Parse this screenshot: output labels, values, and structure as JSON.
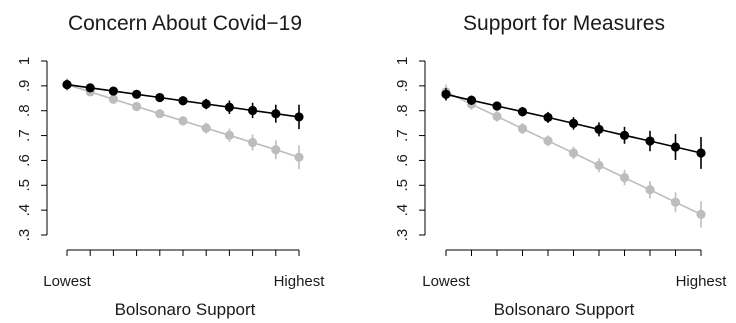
{
  "chart_data": [
    {
      "type": "line",
      "title": "Concern About Covid−19",
      "xlabel": "Bolsonaro Support",
      "ylabel": "",
      "x": [
        1,
        2,
        3,
        4,
        5,
        6,
        7,
        8,
        9,
        10,
        11
      ],
      "x_tick_labels": [
        {
          "x": 1,
          "label": "Lowest"
        },
        {
          "x": 11,
          "label": "Highest"
        }
      ],
      "ylim": [
        0.3,
        1.0
      ],
      "y_ticks": [
        0.3,
        0.4,
        0.5,
        0.6,
        0.7,
        0.8,
        0.9,
        1.0
      ],
      "y_tick_labels": [
        ".3",
        ".4",
        ".5",
        ".6",
        ".7",
        ".8",
        ".9",
        "1"
      ],
      "series": [
        {
          "color": "#000000",
          "values": [
            0.905,
            0.892,
            0.879,
            0.866,
            0.853,
            0.84,
            0.827,
            0.814,
            0.801,
            0.788,
            0.775
          ],
          "ci_low": [
            0.885,
            0.877,
            0.866,
            0.852,
            0.837,
            0.822,
            0.806,
            0.787,
            0.77,
            0.752,
            0.726
          ],
          "ci_high": [
            0.925,
            0.907,
            0.892,
            0.88,
            0.869,
            0.858,
            0.848,
            0.841,
            0.832,
            0.824,
            0.824
          ]
        },
        {
          "color": "#bdbdbd",
          "values": [
            0.905,
            0.876,
            0.846,
            0.817,
            0.788,
            0.759,
            0.73,
            0.701,
            0.672,
            0.643,
            0.613
          ],
          "ci_low": [
            0.88,
            0.858,
            0.829,
            0.8,
            0.771,
            0.74,
            0.708,
            0.674,
            0.64,
            0.605,
            0.565
          ],
          "ci_high": [
            0.93,
            0.894,
            0.863,
            0.834,
            0.805,
            0.778,
            0.752,
            0.728,
            0.704,
            0.681,
            0.661
          ]
        }
      ]
    },
    {
      "type": "line",
      "title": "Support for Measures",
      "xlabel": "Bolsonaro Support",
      "ylabel": "",
      "x": [
        1,
        2,
        3,
        4,
        5,
        6,
        7,
        8,
        9,
        10,
        11
      ],
      "x_tick_labels": [
        {
          "x": 1,
          "label": "Lowest"
        },
        {
          "x": 11,
          "label": "Highest"
        }
      ],
      "ylim": [
        0.3,
        1.0
      ],
      "y_ticks": [
        0.3,
        0.4,
        0.5,
        0.6,
        0.7,
        0.8,
        0.9,
        1.0
      ],
      "y_tick_labels": [
        ".3",
        ".4",
        ".5",
        ".6",
        ".7",
        ".8",
        ".9",
        "1"
      ],
      "series": [
        {
          "color": "#000000",
          "values": [
            0.866,
            0.842,
            0.819,
            0.796,
            0.773,
            0.749,
            0.725,
            0.701,
            0.678,
            0.654,
            0.63
          ],
          "ci_low": [
            0.841,
            0.823,
            0.801,
            0.777,
            0.751,
            0.724,
            0.697,
            0.667,
            0.637,
            0.602,
            0.566
          ],
          "ci_high": [
            0.891,
            0.861,
            0.837,
            0.815,
            0.795,
            0.774,
            0.753,
            0.735,
            0.719,
            0.706,
            0.694
          ]
        },
        {
          "color": "#bdbdbd",
          "values": [
            0.876,
            0.826,
            0.777,
            0.728,
            0.679,
            0.63,
            0.58,
            0.531,
            0.482,
            0.432,
            0.383
          ],
          "ci_low": [
            0.846,
            0.804,
            0.756,
            0.706,
            0.657,
            0.605,
            0.552,
            0.5,
            0.447,
            0.392,
            0.33
          ],
          "ci_high": [
            0.906,
            0.848,
            0.798,
            0.75,
            0.701,
            0.655,
            0.608,
            0.562,
            0.517,
            0.472,
            0.436
          ]
        }
      ]
    }
  ]
}
